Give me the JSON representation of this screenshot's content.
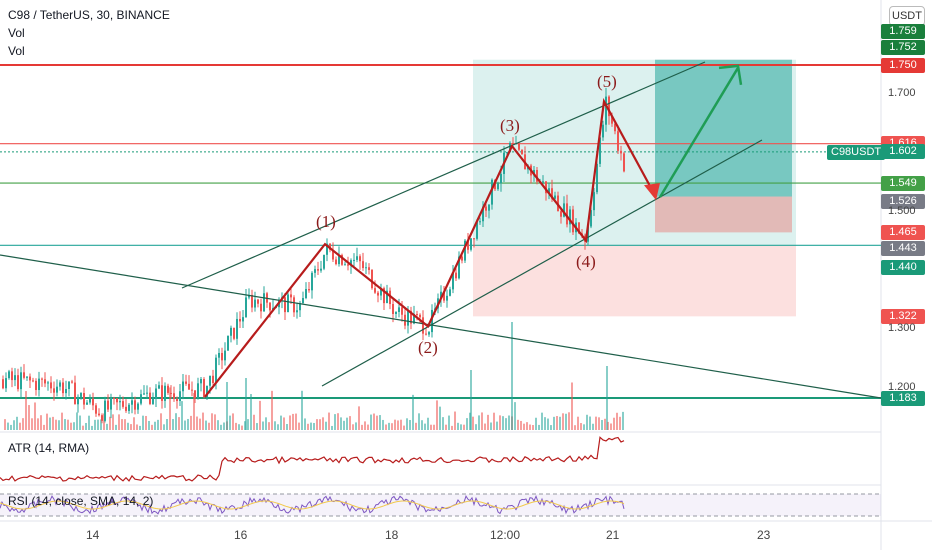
{
  "header": {
    "symbol": "C98 / TetherUS, 30, BINANCE",
    "vol1": "Vol",
    "vol2": "Vol"
  },
  "currency_button": "USDT",
  "symbol_tag": "C98USDT",
  "price_labels": [
    {
      "text": "1.759",
      "value": 1.759,
      "color": "#1a7f3c"
    },
    {
      "text": "1.752",
      "value": 1.752,
      "color": "#1a7f3c"
    },
    {
      "text": "1.750",
      "value": 1.75,
      "color": "#e53935"
    },
    {
      "text": "1.616",
      "value": 1.616,
      "color": "#ef5350"
    },
    {
      "text": "1.602",
      "value": 1.602,
      "color": "#1a9a78"
    },
    {
      "text": "1.549",
      "value": 1.549,
      "color": "#43a047"
    },
    {
      "text": "1.526",
      "value": 1.526,
      "color": "#787b86"
    },
    {
      "text": "1.465",
      "value": 1.465,
      "color": "#ef5350"
    },
    {
      "text": "1.443",
      "value": 1.443,
      "color": "#787b86"
    },
    {
      "text": "1.440",
      "value": 1.44,
      "color": "#1a9a78"
    },
    {
      "text": "1.322",
      "value": 1.322,
      "color": "#ef5350"
    },
    {
      "text": "1.183",
      "value": 1.183,
      "color": "#1a9a78"
    }
  ],
  "price_ticks": [
    {
      "text": "1.700",
      "value": 1.7
    },
    {
      "text": "1.500",
      "value": 1.5
    },
    {
      "text": "1.300",
      "value": 1.3
    },
    {
      "text": "1.200",
      "value": 1.2
    }
  ],
  "x_ticks": [
    {
      "text": "14"
    },
    {
      "text": "16"
    },
    {
      "text": "18"
    },
    {
      "text": "12:00"
    },
    {
      "text": "21"
    },
    {
      "text": "23"
    }
  ],
  "wave_labels": [
    {
      "text": "(1)",
      "price": 1.48
    },
    {
      "text": "(2)",
      "price": 1.27
    },
    {
      "text": "(3)",
      "price": 1.645
    },
    {
      "text": "(4)",
      "price": 1.42
    },
    {
      "text": "(5)",
      "price": 1.725
    }
  ],
  "indicators": {
    "atr_title": "ATR (14, RMA)",
    "rsi_title": "RSI (14, close, SMA, 14, 2)"
  },
  "chart_data": {
    "type": "candlestick",
    "title": "C98 / TetherUS, 30, BINANCE",
    "ylim": [
      1.15,
      1.77
    ],
    "horizontal_levels": [
      {
        "price": 1.75,
        "color": "#e53935"
      },
      {
        "price": 1.616,
        "color": "#ef5350"
      },
      {
        "price": 1.549,
        "color": "#43a047"
      },
      {
        "price": 1.443,
        "color": "#26a69a"
      },
      {
        "price": 1.183,
        "color": "#1a9a78"
      }
    ],
    "elliott_waves": [
      {
        "label": "start",
        "price": 1.185
      },
      {
        "label": "(1)",
        "price": 1.445
      },
      {
        "label": "(2)",
        "price": 1.305
      },
      {
        "label": "(3)",
        "price": 1.612
      },
      {
        "label": "(4)",
        "price": 1.451
      },
      {
        "label": "(5)",
        "price": 1.688
      },
      {
        "label": "target-low",
        "price": 1.525
      },
      {
        "label": "target-high",
        "price": 1.752
      }
    ],
    "long_position": {
      "entry": 1.526,
      "target": 1.759,
      "stop": 1.465
    },
    "current_price": 1.602
  },
  "colors": {
    "up": "#26a69a",
    "down": "#ef5350",
    "wave": "#e53935",
    "arrow_up": "#1f9d55",
    "channel": "#1f5f4a"
  }
}
